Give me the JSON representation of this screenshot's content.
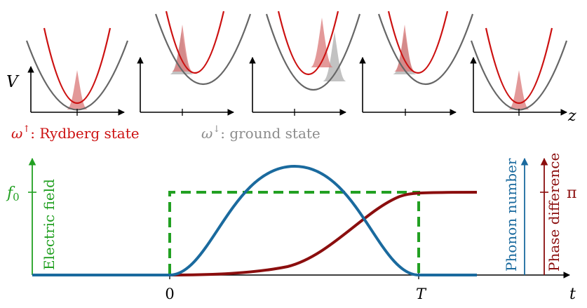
{
  "colors": {
    "rydberg": "#cc1111",
    "ground": "#666666",
    "ground_text": "#8c8c8c",
    "field": "#22a022",
    "phonon": "#1a6a9e",
    "phase": "#8b0e0e",
    "wave_red": "#d97777",
    "wave_grey": "#b3b3b3"
  },
  "top_panels": {
    "y_axis_label": "V",
    "x_axis_label": "z"
  },
  "legend": {
    "rydberg_symbol": "ω",
    "rydberg_arrow": "↑",
    "rydberg_text": ": Rydberg state",
    "ground_symbol": "ω",
    "ground_arrow": "↓",
    "ground_text": ": ground state"
  },
  "bottom_plot": {
    "f0_label": "f",
    "f0_subscript": "0",
    "electric_field_label": "Electric field",
    "phonon_label": "Phonon number",
    "phase_label": "Phase difference",
    "pi_label": "π",
    "t_label": "t",
    "tick_zero": "0",
    "tick_T": "T"
  }
}
